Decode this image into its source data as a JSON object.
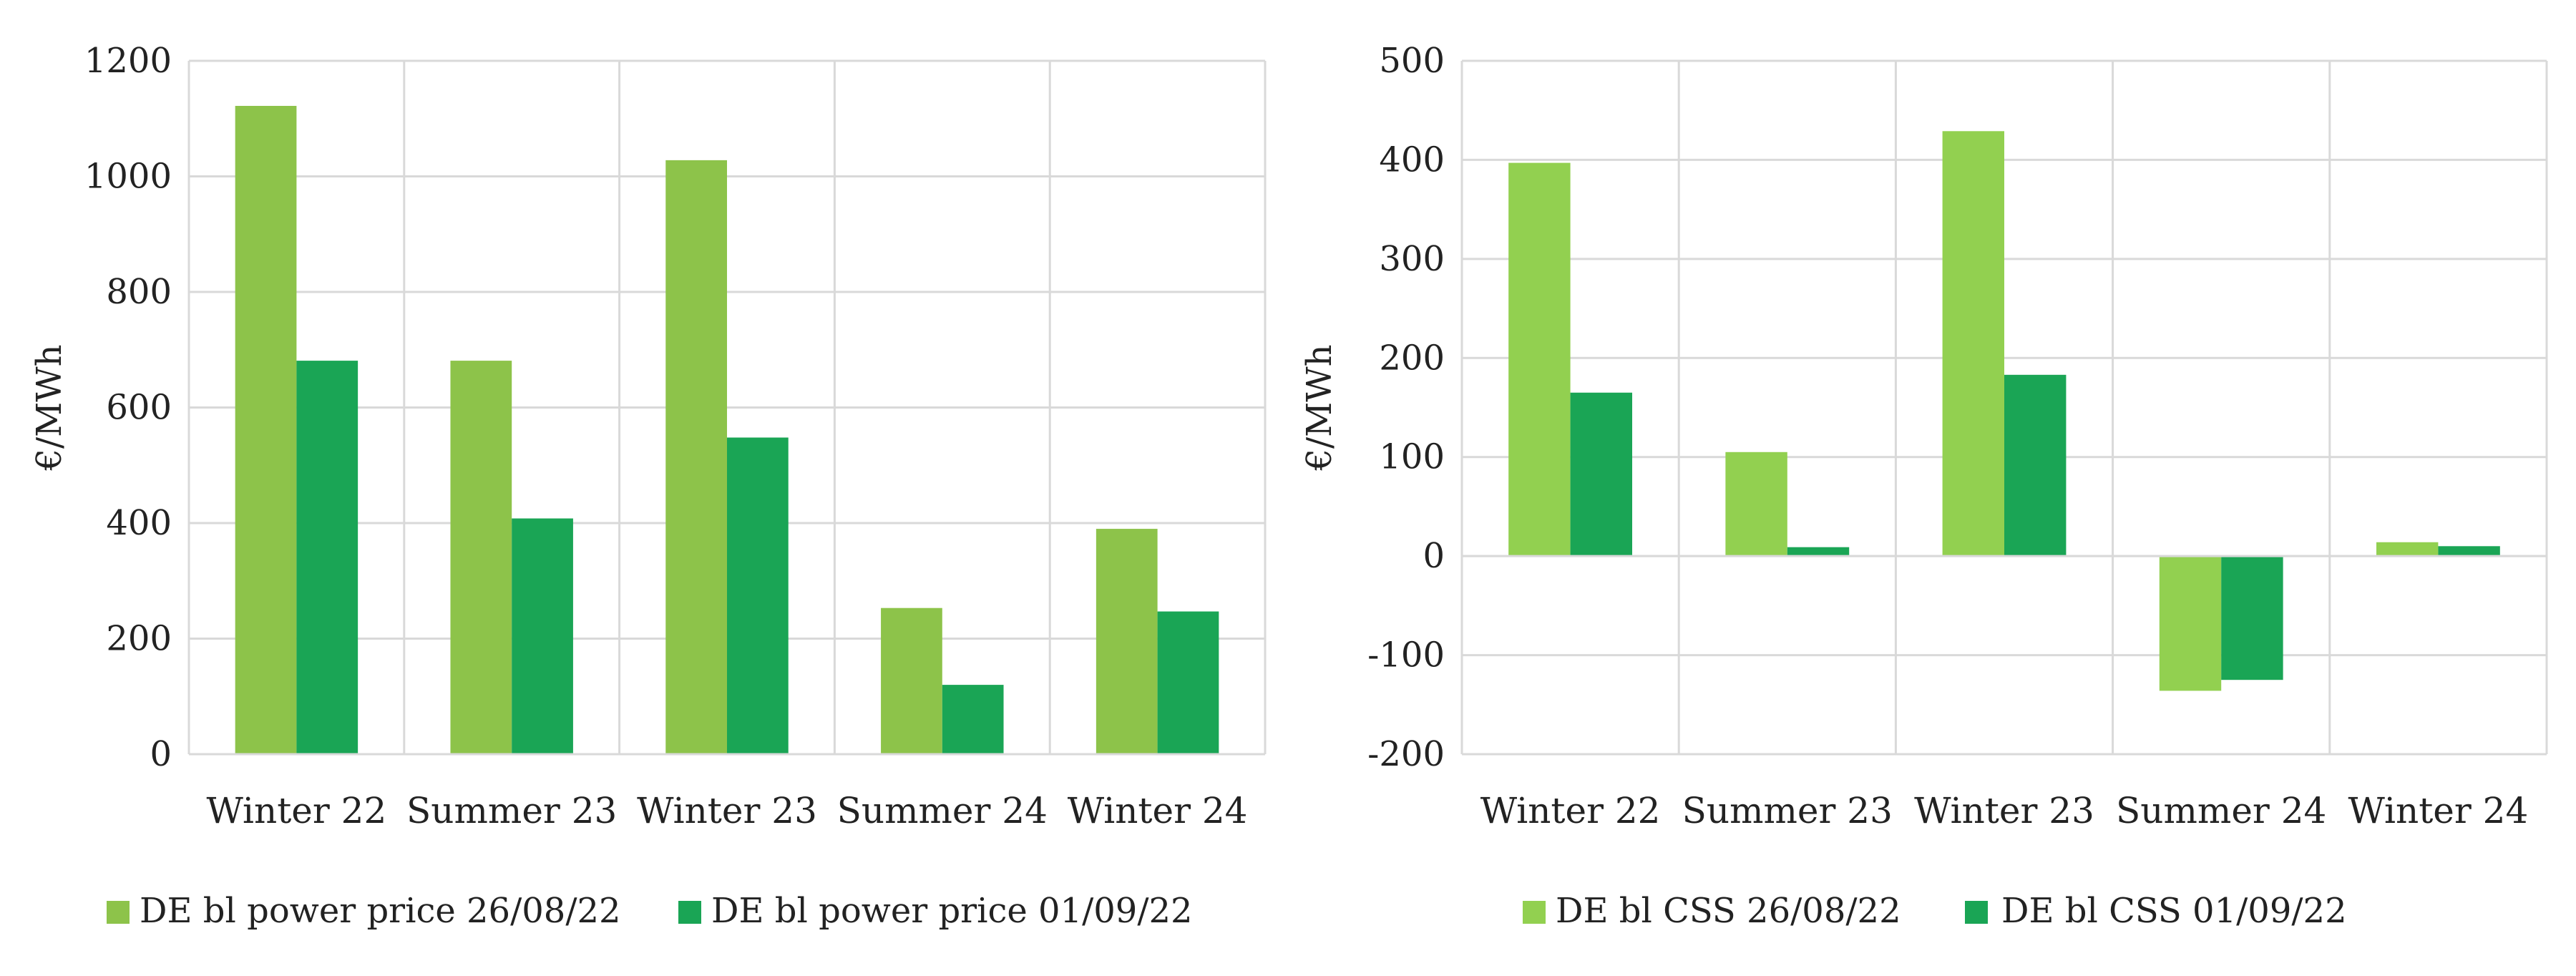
{
  "chart_data": [
    {
      "type": "bar",
      "categories": [
        "Winter 22",
        "Summer 23",
        "Winter 23",
        "Summer 24",
        "Winter 24"
      ],
      "series": [
        {
          "name": "DE bl power price 26/08/22",
          "color": "#8DC34A",
          "values": [
            1122,
            681,
            1028,
            253,
            390
          ]
        },
        {
          "name": "DE bl power price 01/09/22",
          "color": "#1AA555",
          "values": [
            681,
            408,
            548,
            120,
            247
          ]
        }
      ],
      "ylabel": "€/MWh",
      "ylim": [
        0,
        1200
      ],
      "yticks": [
        0,
        200,
        400,
        600,
        800,
        1000,
        1200
      ],
      "grid": true,
      "legend": "bottom"
    },
    {
      "type": "bar",
      "categories": [
        "Winter 22",
        "Summer 23",
        "Winter 23",
        "Summer 24",
        "Winter 24"
      ],
      "series": [
        {
          "name": "DE bl CSS 26/08/22",
          "color": "#92D050",
          "values": [
            397,
            105,
            429,
            -136,
            14
          ]
        },
        {
          "name": "DE bl CSS 01/09/22",
          "color": "#1AA555",
          "values": [
            165,
            9,
            183,
            -125,
            10
          ]
        }
      ],
      "ylabel": "€/MWh",
      "ylim": [
        -200,
        500
      ],
      "yticks": [
        -200,
        -100,
        0,
        100,
        200,
        300,
        400,
        500
      ],
      "grid": true,
      "legend": "bottom"
    }
  ]
}
